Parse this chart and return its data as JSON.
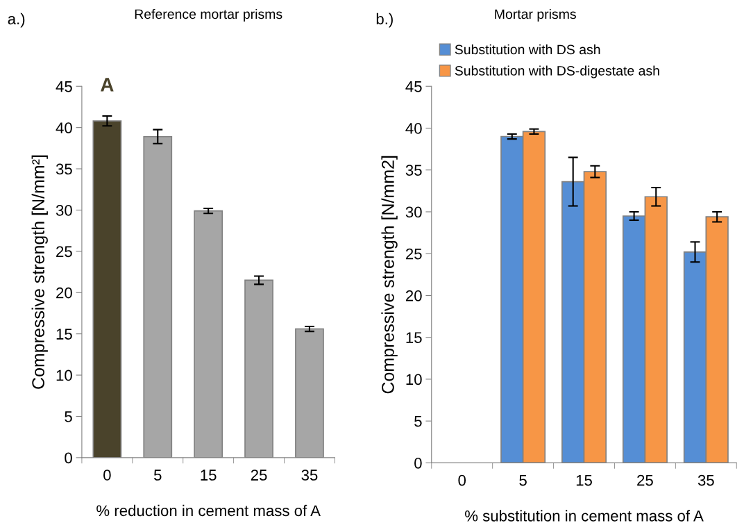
{
  "chart_data": [
    {
      "type": "bar",
      "title": "Reference mortar prisms",
      "xlabel": "% reduction in cement mass of A",
      "ylabel": "Compressive strength [N/mm²]",
      "categories": [
        "0",
        "5",
        "15",
        "25",
        "35"
      ],
      "values": [
        40.8,
        38.9,
        29.9,
        21.5,
        15.6
      ],
      "errors": [
        0.6,
        0.85,
        0.3,
        0.5,
        0.3
      ],
      "colors": [
        "#4a432b",
        "#a6a6a6",
        "#a6a6a6",
        "#a6a6a6",
        "#a6a6a6"
      ],
      "ylim": [
        0,
        45
      ],
      "yticks": [
        0,
        5,
        10,
        15,
        20,
        25,
        30,
        35,
        40,
        45
      ],
      "grid": false,
      "annotations": [
        "a.)",
        "A"
      ]
    },
    {
      "type": "bar",
      "title": "Mortar prisms",
      "xlabel": "% substitution in cement mass of A",
      "ylabel": "Compressive strength [N/mm2]",
      "categories": [
        "0",
        "5",
        "15",
        "25",
        "35"
      ],
      "series": [
        {
          "name": "Substitution with DS ash",
          "color": "#558ed5",
          "values": [
            null,
            39.0,
            33.6,
            29.5,
            25.2
          ],
          "errors": [
            null,
            0.3,
            2.9,
            0.5,
            1.2
          ]
        },
        {
          "name": "Substitution with DS-digestate ash",
          "color": "#f79646",
          "values": [
            null,
            39.6,
            34.8,
            31.8,
            29.4
          ],
          "errors": [
            null,
            0.3,
            0.7,
            1.1,
            0.6
          ]
        }
      ],
      "ylim": [
        0,
        45
      ],
      "yticks": [
        0,
        5,
        10,
        15,
        20,
        25,
        30,
        35,
        40,
        45
      ],
      "grid": false,
      "legend": "top",
      "annotations": [
        "b.)"
      ]
    }
  ]
}
